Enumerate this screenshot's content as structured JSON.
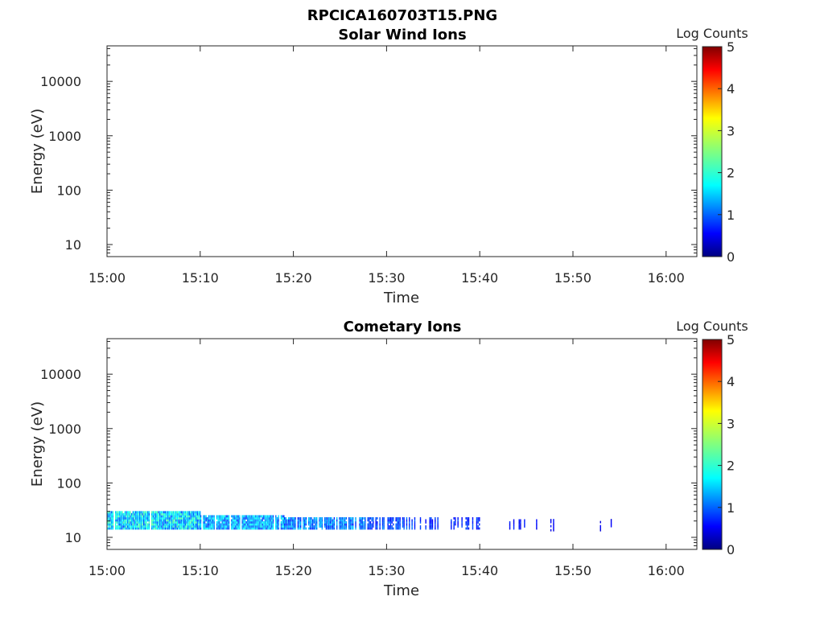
{
  "figure_title": "RPCICA160703T15.PNG",
  "chart_data": [
    {
      "type": "heatmap",
      "title": "Solar Wind Ions",
      "xlabel": "Time",
      "ylabel": "Energy (eV)",
      "x_tick_labels": [
        "15:00",
        "15:10",
        "15:20",
        "15:30",
        "15:40",
        "15:50",
        "16:00"
      ],
      "x_tick_minutes": [
        0,
        10,
        20,
        30,
        40,
        50,
        60
      ],
      "xlim_minutes": [
        0,
        63.3
      ],
      "y_scale": "log",
      "y_tick_labels": [
        "10",
        "100",
        "1000",
        "10000"
      ],
      "y_tick_values": [
        10,
        100,
        1000,
        10000
      ],
      "ylim": [
        6,
        45000
      ],
      "colorbar": {
        "label": "Log Counts",
        "ticks": [
          "0",
          "1",
          "2",
          "3",
          "4",
          "5"
        ],
        "range": [
          0,
          5
        ]
      },
      "colormap": "jet",
      "cells": []
    },
    {
      "type": "heatmap",
      "title": "Cometary Ions",
      "xlabel": "Time",
      "ylabel": "Energy (eV)",
      "x_tick_labels": [
        "15:00",
        "15:10",
        "15:20",
        "15:30",
        "15:40",
        "15:50",
        "16:00"
      ],
      "x_tick_minutes": [
        0,
        10,
        20,
        30,
        40,
        50,
        60
      ],
      "xlim_minutes": [
        0,
        63.3
      ],
      "y_scale": "log",
      "y_tick_labels": [
        "10",
        "100",
        "1000",
        "10000"
      ],
      "y_tick_values": [
        10,
        100,
        1000,
        10000
      ],
      "ylim": [
        6,
        45000
      ],
      "colorbar": {
        "label": "Log Counts",
        "ticks": [
          "0",
          "1",
          "2",
          "3",
          "4",
          "5"
        ],
        "range": [
          0,
          5
        ]
      },
      "colormap": "jet",
      "bands": [
        {
          "t_start": 0,
          "t_end": 10,
          "e_low": 14,
          "e_high": 28,
          "level": 0.9,
          "density": 0.95
        },
        {
          "t_start": 10,
          "t_end": 19,
          "e_low": 14,
          "e_high": 25,
          "level": 0.75,
          "density": 0.92
        },
        {
          "t_start": 19,
          "t_end": 27.5,
          "e_low": 14,
          "e_high": 23,
          "level": 0.6,
          "density": 0.88
        },
        {
          "t_start": 27.5,
          "t_end": 33,
          "e_low": 14,
          "e_high": 22,
          "level": 0.45,
          "density": 0.6
        },
        {
          "t_start": 33,
          "t_end": 40,
          "e_low": 14,
          "e_high": 22,
          "level": 0.35,
          "density": 0.35
        },
        {
          "t_start": 40,
          "t_end": 47,
          "e_low": 14,
          "e_high": 21,
          "level": 0.25,
          "density": 0.15
        },
        {
          "t_start": 47,
          "t_end": 54.5,
          "e_low": 13,
          "e_high": 21,
          "level": 0.2,
          "density": 0.06
        }
      ]
    }
  ]
}
